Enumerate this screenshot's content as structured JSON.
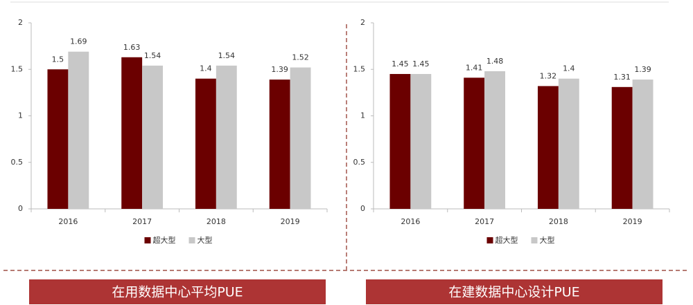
{
  "chart_data": [
    {
      "type": "bar",
      "title": "在用数据中心平均PUE",
      "categories": [
        "2016",
        "2017",
        "2018",
        "2019"
      ],
      "series": [
        {
          "name": "超大型",
          "color": "#6b0000",
          "values": [
            1.5,
            1.63,
            1.4,
            1.39
          ]
        },
        {
          "name": "大型",
          "color": "#c8c8c8",
          "values": [
            1.69,
            1.54,
            1.54,
            1.52
          ]
        }
      ],
      "ylim": [
        0,
        2
      ],
      "yticks": [
        0,
        0.5,
        1,
        1.5,
        2
      ],
      "grid": false,
      "legend": "bottom"
    },
    {
      "type": "bar",
      "title": "在建数据中心设计PUE",
      "categories": [
        "2016",
        "2017",
        "2018",
        "2019"
      ],
      "series": [
        {
          "name": "超大型",
          "color": "#6b0000",
          "values": [
            1.45,
            1.41,
            1.32,
            1.31
          ]
        },
        {
          "name": "大型",
          "color": "#c8c8c8",
          "values": [
            1.45,
            1.48,
            1.4,
            1.39
          ]
        }
      ],
      "ylim": [
        0,
        2
      ],
      "yticks": [
        0,
        0.5,
        1,
        1.5,
        2
      ],
      "grid": false,
      "legend": "bottom"
    }
  ]
}
